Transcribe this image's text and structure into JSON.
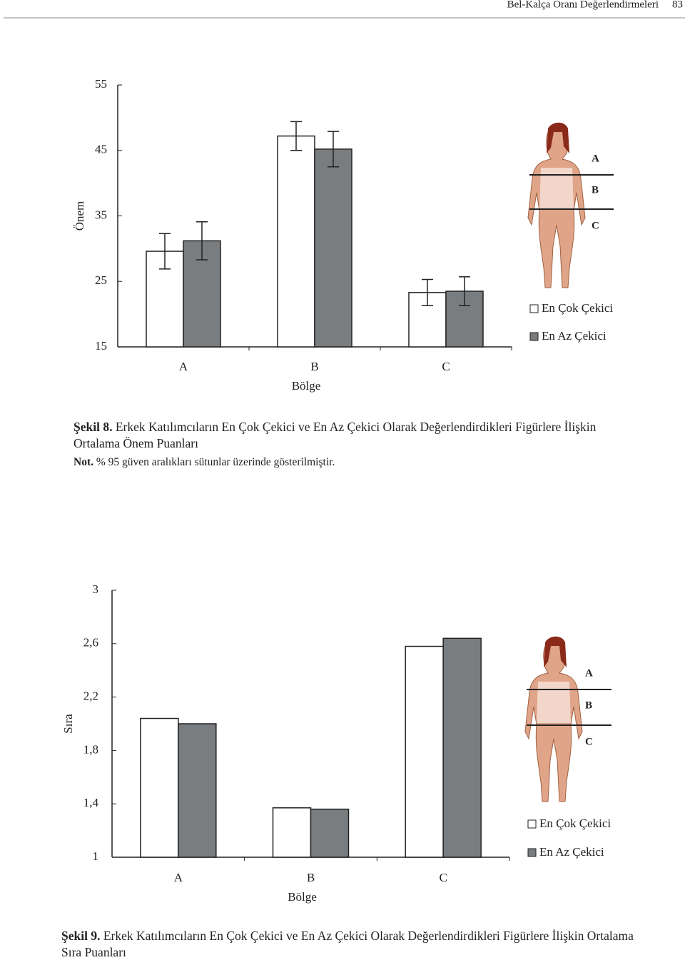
{
  "header": {
    "title": "Bel-Kalça Oranı Değerlendirmeleri",
    "page": "83"
  },
  "captions": [
    {
      "label": "Şekil 8.",
      "text": "Erkek Katılımcıların En Çok Çekici ve En Az Çekici Olarak Değerlendirdikleri Figürlere İlişkin Ortalama Önem Puanları"
    },
    {
      "label": "Şekil 9.",
      "text": "Erkek Katılımcıların En Çok Çekici ve En Az Çekici Olarak Değerlendirdikleri Figürlere İlişkin Ortalama Sıra Puanları"
    }
  ],
  "note": {
    "label": "Not.",
    "text": "% 95 güven aralıkları sütunlar üzerinde gösterilmiştir."
  },
  "chart_data": [
    {
      "type": "bar",
      "x_label": "Bölge",
      "y_label": "Önem",
      "categories": [
        "A",
        "B",
        "C"
      ],
      "series": [
        {
          "name": "En Çok Çekici",
          "color": "#ffffff",
          "values": [
            29.6,
            47.2,
            23.3
          ],
          "error": [
            2.7,
            2.2,
            2.0
          ]
        },
        {
          "name": "En Az Çekici",
          "color": "#7a7d80",
          "values": [
            31.2,
            45.2,
            23.5
          ],
          "error": [
            2.9,
            2.7,
            2.2
          ]
        }
      ],
      "ylim": [
        15,
        55
      ],
      "yticks": [
        15,
        25,
        35,
        45,
        55
      ],
      "legend": "right"
    },
    {
      "type": "bar",
      "x_label": "Bölge",
      "y_label": "Sıra",
      "categories": [
        "A",
        "B",
        "C"
      ],
      "series": [
        {
          "name": "En Çok Çekici",
          "color": "#ffffff",
          "values": [
            2.04,
            1.37,
            2.58
          ]
        },
        {
          "name": "En Az Çekici",
          "color": "#7a7d80",
          "values": [
            2.0,
            1.36,
            2.64
          ]
        }
      ],
      "ylim": [
        1,
        3
      ],
      "yticks": [
        1,
        {
          "value": 1.4,
          "label": "1,4"
        },
        {
          "value": 1.8,
          "label": "1,8"
        },
        {
          "value": 2.2,
          "label": "2,2"
        },
        {
          "value": 2.6,
          "label": "2,6"
        },
        3
      ],
      "legend": "right"
    }
  ]
}
